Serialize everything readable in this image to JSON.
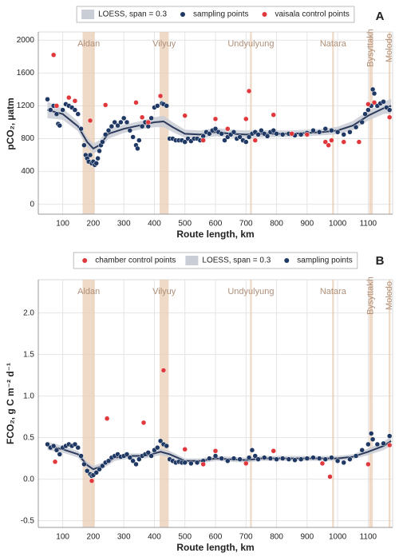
{
  "chart_data": [
    {
      "type": "scatter",
      "panel_label": "A",
      "xlabel": "Route length, km",
      "ylabel": "pCO₂, µatm",
      "xlim": [
        20,
        1180
      ],
      "xticks": [
        100,
        200,
        300,
        400,
        500,
        600,
        700,
        800,
        900,
        1000,
        1100
      ],
      "ylim": [
        -120,
        2100
      ],
      "yticks": [
        0,
        400,
        800,
        1200,
        1600,
        2000
      ],
      "grid": true,
      "river_color": "#e8cdb4",
      "rivers": [
        {
          "name": "Aldan",
          "from": 165,
          "to": 205,
          "vertical_label": false
        },
        {
          "name": "Vilyuy",
          "from": 417,
          "to": 447,
          "vertical_label": false
        },
        {
          "name": "Undyulyung",
          "from": 713,
          "to": 719,
          "vertical_label": false
        },
        {
          "name": "Natara",
          "from": 982,
          "to": 988,
          "vertical_label": false
        },
        {
          "name": "Bysyttakh",
          "from": 1103,
          "to": 1115,
          "vertical_label": true
        },
        {
          "name": "Molodo",
          "from": 1167,
          "to": 1173,
          "vertical_label": true
        }
      ],
      "series": [
        {
          "name": "LOESS, span = 0.3",
          "mark": "line",
          "color": "#2b3a5a",
          "band_color": "#c9cdd5",
          "x": [
            50,
            100,
            150,
            180,
            200,
            220,
            250,
            300,
            350,
            400,
            430,
            460,
            500,
            550,
            600,
            650,
            700,
            750,
            800,
            850,
            900,
            950,
            1000,
            1050,
            1100,
            1150,
            1175
          ],
          "values": [
            1150,
            1100,
            950,
            760,
            680,
            720,
            860,
            920,
            960,
            1000,
            1010,
            940,
            860,
            850,
            880,
            860,
            850,
            860,
            860,
            860,
            870,
            880,
            900,
            960,
            1080,
            1170,
            1200
          ],
          "lower": [
            1050,
            1030,
            890,
            700,
            620,
            660,
            800,
            870,
            910,
            940,
            940,
            880,
            810,
            800,
            830,
            810,
            800,
            815,
            820,
            820,
            830,
            840,
            855,
            905,
            1020,
            1100,
            1110
          ],
          "upper": [
            1250,
            1170,
            1010,
            820,
            740,
            780,
            920,
            970,
            1010,
            1060,
            1080,
            1000,
            910,
            900,
            930,
            910,
            900,
            905,
            900,
            900,
            910,
            920,
            945,
            1015,
            1140,
            1240,
            1290
          ]
        },
        {
          "name": "sampling points",
          "mark": "point",
          "color": "#1f3864",
          "x": [
            50,
            60,
            70,
            80,
            85,
            90,
            100,
            110,
            120,
            130,
            140,
            150,
            160,
            170,
            175,
            180,
            185,
            190,
            195,
            200,
            205,
            210,
            215,
            220,
            225,
            230,
            240,
            250,
            260,
            270,
            280,
            290,
            300,
            310,
            320,
            330,
            340,
            345,
            350,
            360,
            370,
            380,
            390,
            400,
            410,
            420,
            425,
            430,
            440,
            450,
            460,
            470,
            480,
            490,
            500,
            510,
            520,
            530,
            540,
            550,
            560,
            570,
            580,
            590,
            600,
            610,
            620,
            630,
            640,
            650,
            660,
            670,
            680,
            690,
            700,
            710,
            720,
            730,
            740,
            750,
            760,
            770,
            780,
            790,
            800,
            820,
            840,
            860,
            880,
            900,
            920,
            940,
            960,
            980,
            1000,
            1020,
            1040,
            1060,
            1080,
            1090,
            1100,
            1110,
            1115,
            1120,
            1130,
            1140,
            1150,
            1160,
            1170
          ],
          "values": [
            1280,
            1150,
            1200,
            1100,
            980,
            960,
            1150,
            1220,
            1200,
            1180,
            1150,
            1100,
            920,
            720,
            600,
            560,
            520,
            600,
            500,
            520,
            480,
            500,
            560,
            650,
            720,
            760,
            850,
            900,
            950,
            1000,
            960,
            1000,
            1050,
            1000,
            900,
            820,
            720,
            680,
            780,
            950,
            1000,
            950,
            1050,
            1180,
            1200,
            1320,
            1230,
            1220,
            1200,
            800,
            800,
            780,
            780,
            780,
            760,
            800,
            770,
            800,
            800,
            780,
            830,
            880,
            860,
            900,
            920,
            880,
            860,
            780,
            820,
            850,
            880,
            800,
            820,
            780,
            760,
            820,
            860,
            880,
            850,
            900,
            860,
            830,
            880,
            900,
            860,
            850,
            860,
            840,
            850,
            870,
            900,
            880,
            920,
            900,
            880,
            850,
            880,
            940,
            1000,
            1100,
            1150,
            1200,
            1400,
            1350,
            1200,
            1230,
            1250,
            1180,
            1150
          ]
        },
        {
          "name": "vaisala control points",
          "mark": "point",
          "color": "#e0383c",
          "x": [
            70,
            80,
            120,
            140,
            190,
            240,
            340,
            360,
            380,
            420,
            500,
            560,
            600,
            640,
            700,
            710,
            730,
            790,
            850,
            900,
            960,
            970,
            980,
            1020,
            1070,
            1100,
            1120,
            1170
          ],
          "values": [
            1820,
            1200,
            1300,
            1260,
            1020,
            1210,
            1240,
            1060,
            1000,
            1320,
            1080,
            780,
            1040,
            920,
            1040,
            1380,
            780,
            1090,
            860,
            850,
            760,
            720,
            780,
            760,
            760,
            1220,
            1240,
            1060
          ]
        }
      ]
    },
    {
      "type": "scatter",
      "panel_label": "B",
      "xlabel": "Route length, km",
      "ylabel": "FCO₂, g C m⁻² d⁻¹",
      "xlim": [
        20,
        1180
      ],
      "xticks": [
        100,
        200,
        300,
        400,
        500,
        600,
        700,
        800,
        900,
        1000,
        1100
      ],
      "ylim": [
        -0.58,
        2.4
      ],
      "yticks": [
        -0.5,
        {
          "value": 0,
          "label": "0.0"
        },
        0.5,
        {
          "value": 1,
          "label": "1.0"
        },
        1.5,
        {
          "value": 2,
          "label": "2.0"
        }
      ],
      "grid": true,
      "river_color": "#e8cdb4",
      "rivers": [
        {
          "name": "Aldan",
          "from": 165,
          "to": 205,
          "vertical_label": false
        },
        {
          "name": "Vilyuy",
          "from": 417,
          "to": 447,
          "vertical_label": false
        },
        {
          "name": "Undyulyung",
          "from": 713,
          "to": 719,
          "vertical_label": false
        },
        {
          "name": "Natara",
          "from": 982,
          "to": 988,
          "vertical_label": false
        },
        {
          "name": "Bysyttakh",
          "from": 1103,
          "to": 1115,
          "vertical_label": true
        },
        {
          "name": "Molodo",
          "from": 1167,
          "to": 1173,
          "vertical_label": true
        }
      ],
      "series": [
        {
          "name": "chamber control points",
          "mark": "point",
          "color": "#e0383c",
          "x": [
            75,
            195,
            245,
            365,
            430,
            500,
            560,
            600,
            700,
            790,
            950,
            975,
            1100,
            1170
          ],
          "values": [
            0.21,
            -0.02,
            0.73,
            0.68,
            1.31,
            0.36,
            0.18,
            0.34,
            0.19,
            0.34,
            0.19,
            0.03,
            0.18,
            0.41
          ]
        },
        {
          "name": "LOESS, span = 0.3",
          "mark": "line",
          "color": "#2b3a5a",
          "band_color": "#c9cdd5",
          "x": [
            50,
            100,
            150,
            180,
            200,
            230,
            270,
            320,
            370,
            420,
            450,
            500,
            550,
            600,
            650,
            700,
            750,
            800,
            850,
            900,
            950,
            1000,
            1050,
            1100,
            1150,
            1175
          ],
          "values": [
            0.4,
            0.36,
            0.3,
            0.17,
            0.12,
            0.16,
            0.26,
            0.28,
            0.28,
            0.33,
            0.3,
            0.22,
            0.22,
            0.25,
            0.24,
            0.23,
            0.25,
            0.25,
            0.25,
            0.25,
            0.25,
            0.25,
            0.27,
            0.33,
            0.4,
            0.46
          ],
          "lower": [
            0.35,
            0.32,
            0.26,
            0.13,
            0.08,
            0.12,
            0.22,
            0.25,
            0.25,
            0.29,
            0.26,
            0.19,
            0.19,
            0.22,
            0.21,
            0.2,
            0.22,
            0.22,
            0.22,
            0.22,
            0.22,
            0.22,
            0.24,
            0.29,
            0.35,
            0.4
          ],
          "upper": [
            0.45,
            0.4,
            0.34,
            0.21,
            0.16,
            0.2,
            0.3,
            0.31,
            0.31,
            0.37,
            0.34,
            0.25,
            0.25,
            0.28,
            0.27,
            0.26,
            0.28,
            0.28,
            0.28,
            0.28,
            0.28,
            0.28,
            0.3,
            0.37,
            0.45,
            0.52
          ]
        },
        {
          "name": "sampling points",
          "mark": "point",
          "color": "#1f3864",
          "x": [
            50,
            60,
            70,
            80,
            90,
            100,
            110,
            120,
            130,
            140,
            150,
            160,
            170,
            180,
            190,
            195,
            200,
            210,
            220,
            230,
            240,
            250,
            260,
            270,
            280,
            290,
            300,
            310,
            320,
            330,
            340,
            350,
            360,
            370,
            380,
            390,
            400,
            410,
            420,
            430,
            440,
            450,
            460,
            470,
            480,
            490,
            500,
            520,
            540,
            560,
            580,
            600,
            620,
            640,
            660,
            680,
            700,
            710,
            720,
            730,
            740,
            760,
            780,
            800,
            820,
            840,
            860,
            880,
            900,
            920,
            940,
            960,
            980,
            1000,
            1020,
            1040,
            1060,
            1080,
            1100,
            1110,
            1115,
            1130,
            1150,
            1170
          ],
          "values": [
            0.42,
            0.38,
            0.4,
            0.35,
            0.3,
            0.38,
            0.4,
            0.42,
            0.4,
            0.42,
            0.38,
            0.28,
            0.18,
            0.1,
            0.06,
            0.04,
            0.05,
            0.08,
            0.12,
            0.16,
            0.2,
            0.22,
            0.26,
            0.28,
            0.3,
            0.27,
            0.28,
            0.3,
            0.26,
            0.22,
            0.18,
            0.24,
            0.28,
            0.3,
            0.32,
            0.28,
            0.35,
            0.38,
            0.46,
            0.42,
            0.4,
            0.24,
            0.22,
            0.2,
            0.21,
            0.2,
            0.2,
            0.19,
            0.2,
            0.22,
            0.25,
            0.28,
            0.25,
            0.22,
            0.25,
            0.24,
            0.2,
            0.26,
            0.35,
            0.28,
            0.24,
            0.26,
            0.25,
            0.24,
            0.25,
            0.24,
            0.23,
            0.24,
            0.25,
            0.26,
            0.25,
            0.24,
            0.26,
            0.22,
            0.2,
            0.24,
            0.28,
            0.35,
            0.42,
            0.55,
            0.48,
            0.42,
            0.43,
            0.52
          ]
        }
      ]
    }
  ]
}
